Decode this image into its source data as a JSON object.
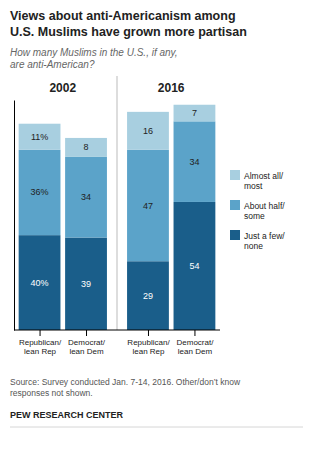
{
  "chart_data": {
    "type": "bar",
    "title": "Views about anti-Americanism among\nU.S. Muslims have grown more partisan",
    "subtitle": "How many Muslims in the U.S., if any,\nare anti-American?",
    "source": "Source: Survey conducted Jan. 7-14, 2016. Other/don’t know\nresponses not shown.",
    "credit": "PEW RESEARCH CENTER",
    "annotations": [
      "2002",
      "2016"
    ],
    "categories": [
      "Republican/\nlean Rep",
      "Democrat/\nlean Dem",
      "Republican/\nlean Rep",
      "Democrat/\nlean Dem"
    ],
    "series": [
      {
        "name": "Just a few/\nnone",
        "color": "#1a5e8a",
        "values": [
          40,
          39,
          29,
          54
        ],
        "value_labels": [
          "40%",
          "39",
          "29",
          "54"
        ]
      },
      {
        "name": "About half/\nsome",
        "color": "#5ba3c9",
        "values": [
          36,
          34,
          47,
          34
        ],
        "value_labels": [
          "36%",
          "34",
          "47",
          "34"
        ]
      },
      {
        "name": "Almost all/\nmost",
        "color": "#a8cfe0",
        "values": [
          11,
          8,
          16,
          7
        ],
        "value_labels": [
          "11%",
          "8",
          "16",
          "7"
        ]
      }
    ],
    "ylim": [
      0,
      97
    ],
    "stacked": true,
    "data_labels": true,
    "legend": "right",
    "grid": false,
    "tick_labels": "x"
  }
}
